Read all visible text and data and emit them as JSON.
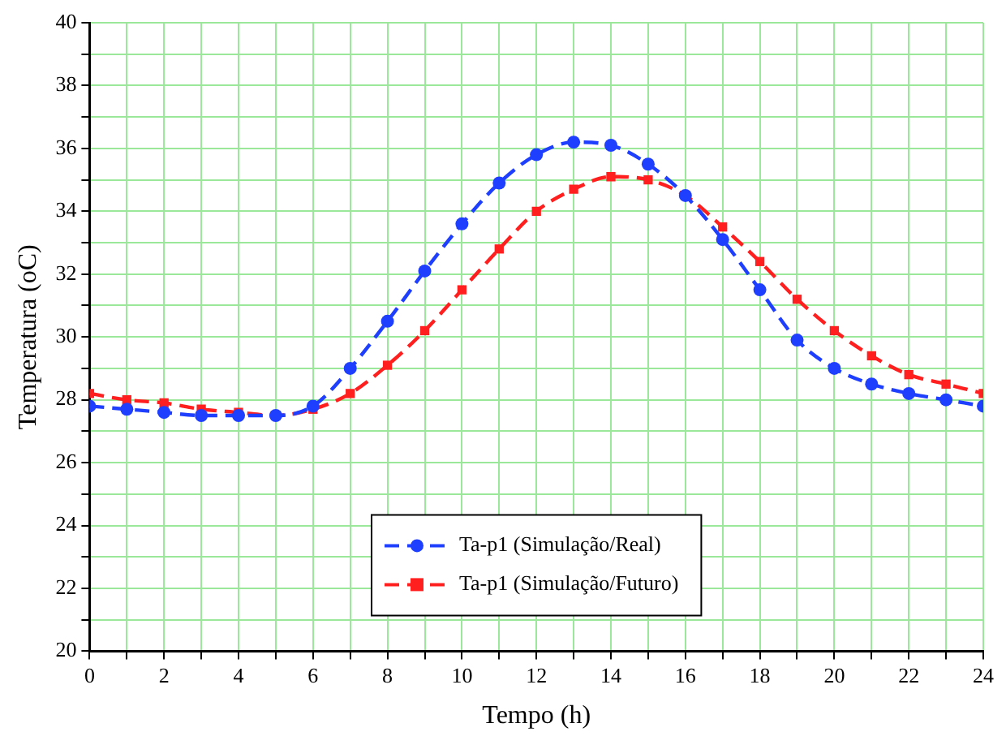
{
  "chart_data": {
    "type": "line",
    "xlabel": "Tempo (h)",
    "ylabel": "Temperatura (oC)",
    "x": [
      0,
      1,
      2,
      3,
      4,
      5,
      6,
      7,
      8,
      9,
      10,
      11,
      12,
      13,
      14,
      15,
      16,
      17,
      18,
      19,
      20,
      21,
      22,
      23,
      24
    ],
    "series": [
      {
        "name": "Ta-p1 (Simulação/Real)",
        "color": "#1f3fff",
        "marker": "circle",
        "values": [
          27.8,
          27.7,
          27.6,
          27.5,
          27.5,
          27.5,
          27.8,
          29.0,
          30.5,
          32.1,
          33.6,
          34.9,
          35.8,
          36.2,
          36.1,
          35.5,
          34.5,
          33.1,
          31.5,
          29.9,
          29.0,
          28.5,
          28.2,
          28.0,
          27.8
        ]
      },
      {
        "name": "Ta-p1 (Simulação/Futuro)",
        "color": "#ff1f1f",
        "marker": "square",
        "values": [
          28.2,
          28.0,
          27.9,
          27.7,
          27.6,
          27.5,
          27.7,
          28.2,
          29.1,
          30.2,
          31.5,
          32.8,
          34.0,
          34.7,
          35.1,
          35.0,
          34.5,
          33.5,
          32.4,
          31.2,
          30.2,
          29.4,
          28.8,
          28.5,
          28.2
        ]
      }
    ],
    "line_style": "dashed",
    "grid": true,
    "legend": "bottom",
    "xlim": [
      0,
      24
    ],
    "xticks": [
      0,
      {
        "value": 1,
        "label": null
      },
      2,
      {
        "value": 3,
        "label": null
      },
      4,
      {
        "value": 5,
        "label": null
      },
      6,
      {
        "value": 7,
        "label": null
      },
      8,
      {
        "value": 9,
        "label": null
      },
      10,
      {
        "value": 11,
        "label": null
      },
      12,
      {
        "value": 13,
        "label": null
      },
      14,
      {
        "value": 15,
        "label": null
      },
      16,
      {
        "value": 17,
        "label": null
      },
      18,
      {
        "value": 19,
        "label": null
      },
      20,
      {
        "value": 21,
        "label": null
      },
      22,
      {
        "value": 23,
        "label": null
      },
      24
    ],
    "ylim": [
      20,
      40
    ],
    "yticks": [
      20,
      {
        "value": 21,
        "label": null
      },
      22,
      {
        "value": 23,
        "label": null
      },
      24,
      {
        "value": 25,
        "label": null
      },
      26,
      {
        "value": 27,
        "label": null
      },
      28,
      {
        "value": 29,
        "label": null
      },
      30,
      {
        "value": 31,
        "label": null
      },
      32,
      {
        "value": 33,
        "label": null
      },
      34,
      {
        "value": 35,
        "label": null
      },
      36,
      {
        "value": 37,
        "label": null
      },
      38,
      {
        "value": 39,
        "label": null
      },
      40
    ]
  }
}
